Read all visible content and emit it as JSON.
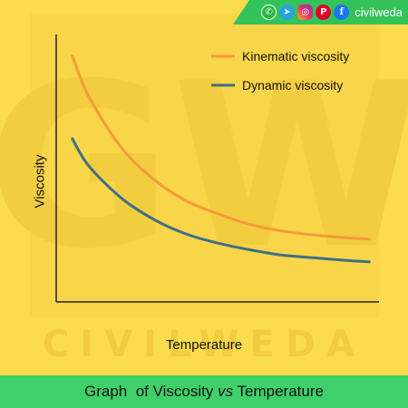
{
  "watermark": {
    "letters": "GW",
    "word": "CIVILWEDA"
  },
  "social": {
    "icons": [
      "whatsapp-icon",
      "telegram-icon",
      "instagram-icon",
      "pinterest-icon",
      "facebook-icon"
    ],
    "brand": "civilweda"
  },
  "title": {
    "part1": "Graph  of Viscosity ",
    "italic": "vs",
    "part2": " Temperature"
  },
  "chart_data": {
    "type": "line",
    "xlabel": "Temperature",
    "ylabel": "Viscosity",
    "xlim": [
      0,
      100
    ],
    "ylim": [
      0,
      100
    ],
    "grid": false,
    "legend": "top-right",
    "series": [
      {
        "name": "Kinematic viscosity",
        "color": "#f59a3a",
        "x": [
          5,
          10,
          20,
          30,
          40,
          50,
          60,
          70,
          80,
          90,
          97
        ],
        "y": [
          92,
          77,
          58,
          46,
          38,
          33,
          29,
          26.5,
          25,
          24,
          23.5
        ]
      },
      {
        "name": "Dynamic viscosity",
        "color": "#3e6f84",
        "x": [
          5,
          10,
          20,
          30,
          40,
          50,
          60,
          70,
          80,
          90,
          97
        ],
        "y": [
          61,
          51,
          39,
          31,
          25.5,
          22,
          19.5,
          17.5,
          16.5,
          15.5,
          15
        ]
      }
    ]
  }
}
